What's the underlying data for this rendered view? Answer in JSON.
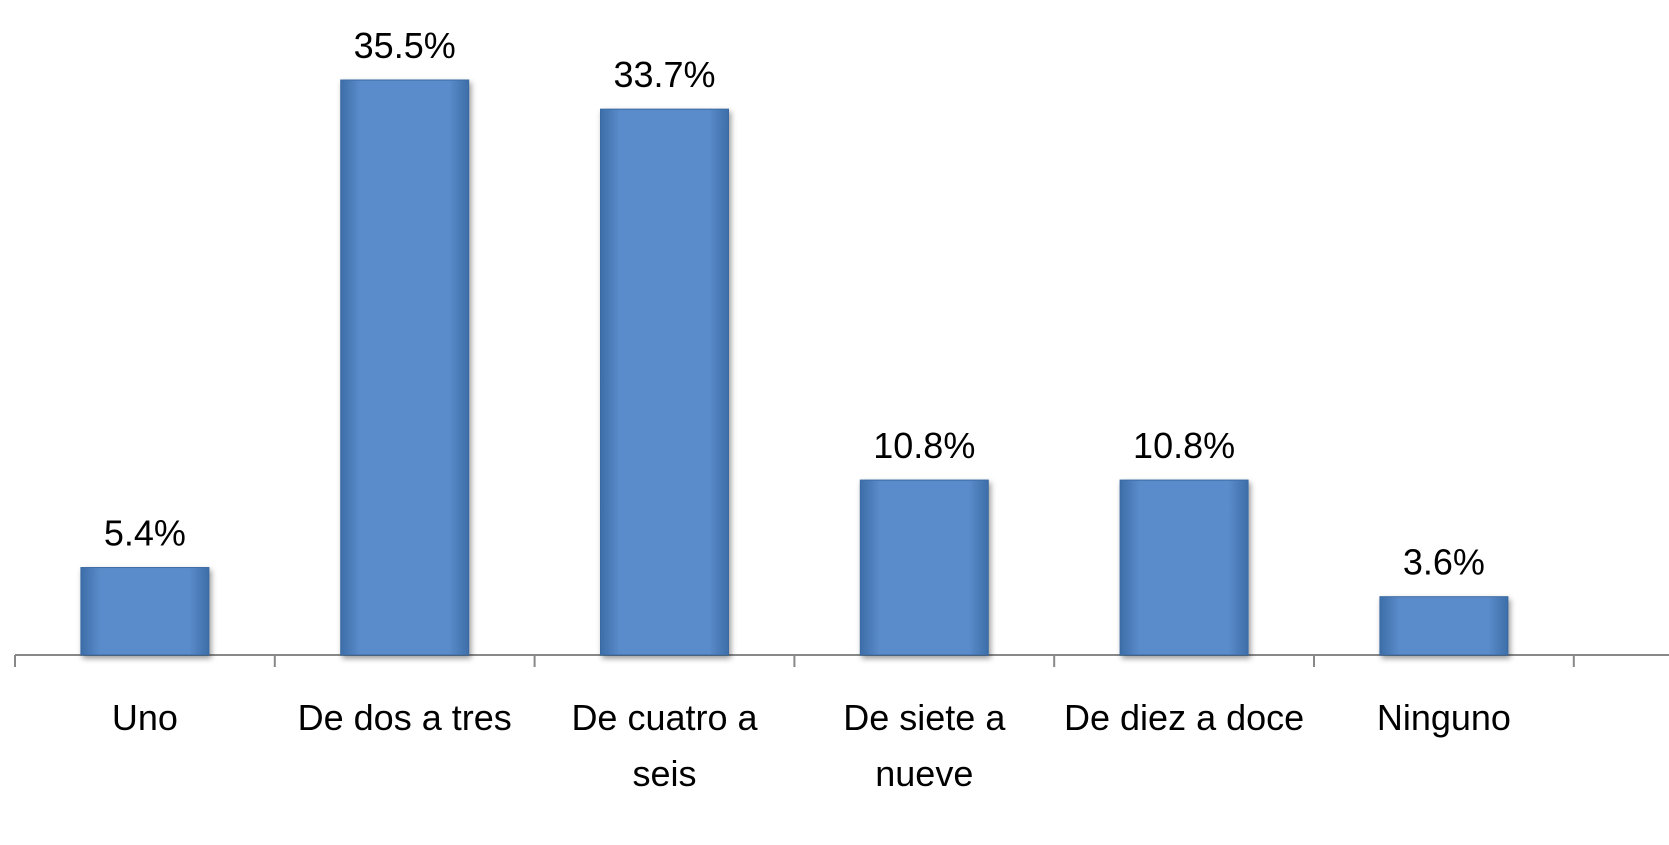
{
  "chart_data": {
    "type": "bar",
    "categories": [
      "Uno",
      "De dos a tres",
      "De cuatro a seis",
      "De siete a nueve",
      "De diez a doce",
      "Ninguno"
    ],
    "values": [
      5.4,
      35.5,
      33.7,
      10.8,
      10.8,
      3.6
    ],
    "value_labels": [
      "5.4%",
      "35.5%",
      "33.7%",
      "10.8%",
      "10.8%",
      "3.6%"
    ],
    "color": "#4f81bd"
  }
}
